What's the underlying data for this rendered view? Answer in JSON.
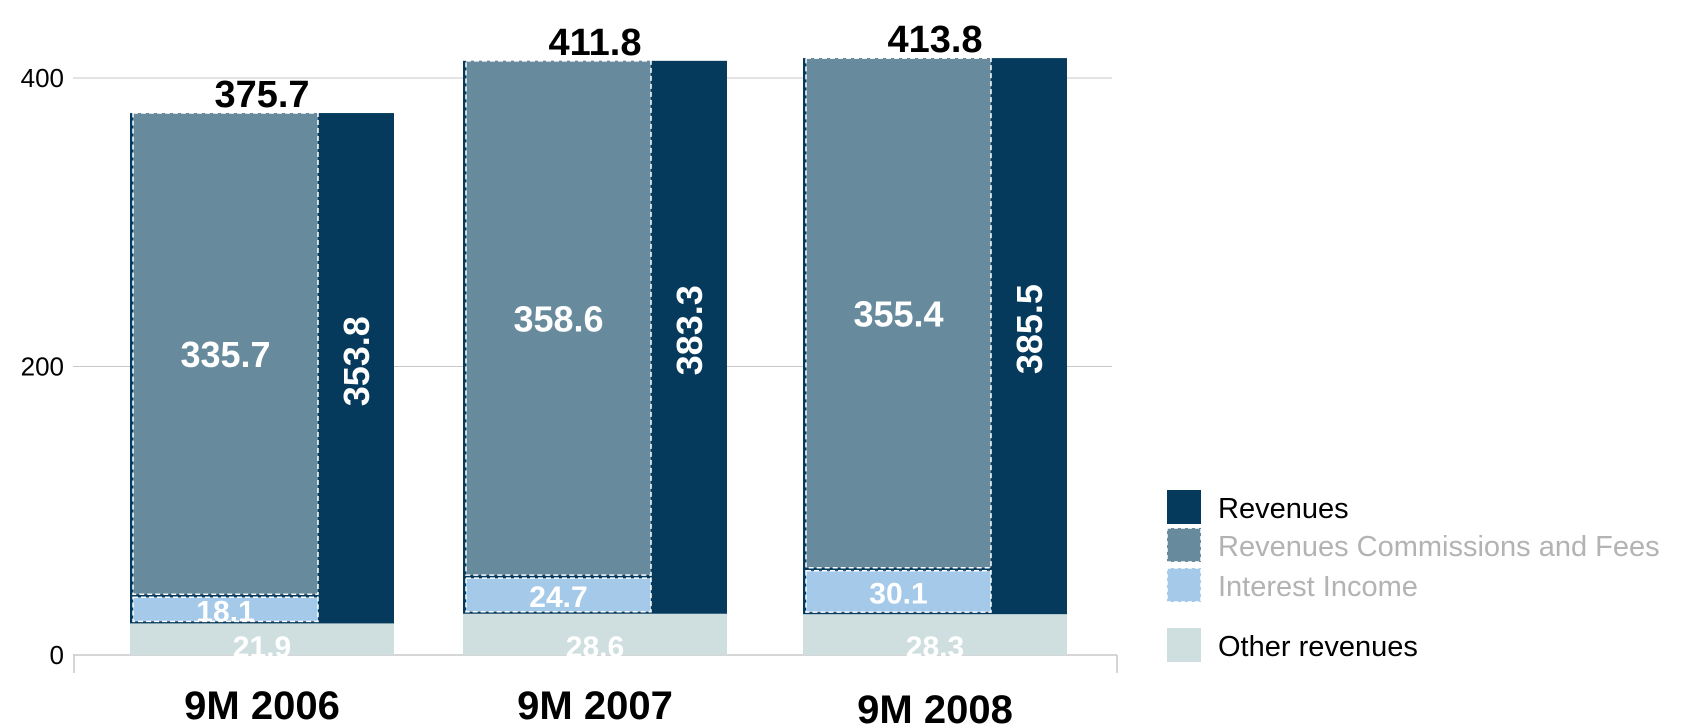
{
  "chart_data": {
    "type": "bar",
    "categories": [
      "9M 2006",
      "9M 2007",
      "9M 2008"
    ],
    "totals": [
      375.7,
      411.8,
      413.8
    ],
    "series": [
      {
        "name": "Other revenues",
        "values": [
          21.9,
          28.6,
          28.3
        ],
        "color": "#cfdfdf",
        "label_color": "#ffffff"
      },
      {
        "name": "Interest Income",
        "values": [
          18.1,
          24.7,
          30.1
        ],
        "color": "#a5c9e9",
        "label_color": "#ffffff"
      },
      {
        "name": "Revenues Commissions and Fees",
        "values": [
          335.7,
          358.6,
          355.4
        ],
        "color": "#678b9d",
        "label_color": "#ffffff"
      },
      {
        "name": "Revenues",
        "values": [
          353.8,
          383.3,
          385.5
        ],
        "color": "#053a5d",
        "label_color": "#ffffff"
      }
    ],
    "yticks": [
      0,
      200,
      400
    ],
    "ylim": [
      0,
      440
    ],
    "grid": true,
    "legend_position": "right",
    "legend": [
      {
        "name": "Revenues",
        "color": "#053a5d",
        "text_color": "#000000",
        "dashed": false
      },
      {
        "name": "Revenues Commissions and Fees",
        "color": "#678b9d",
        "text_color": "#b3b3b3",
        "dashed": true
      },
      {
        "name": "Interest Income",
        "color": "#a5c9e9",
        "text_color": "#b3b3b3",
        "dashed": true
      },
      {
        "name": "Other revenues",
        "color": "#cfdfdf",
        "text_color": "#000000",
        "dashed": false
      }
    ]
  }
}
